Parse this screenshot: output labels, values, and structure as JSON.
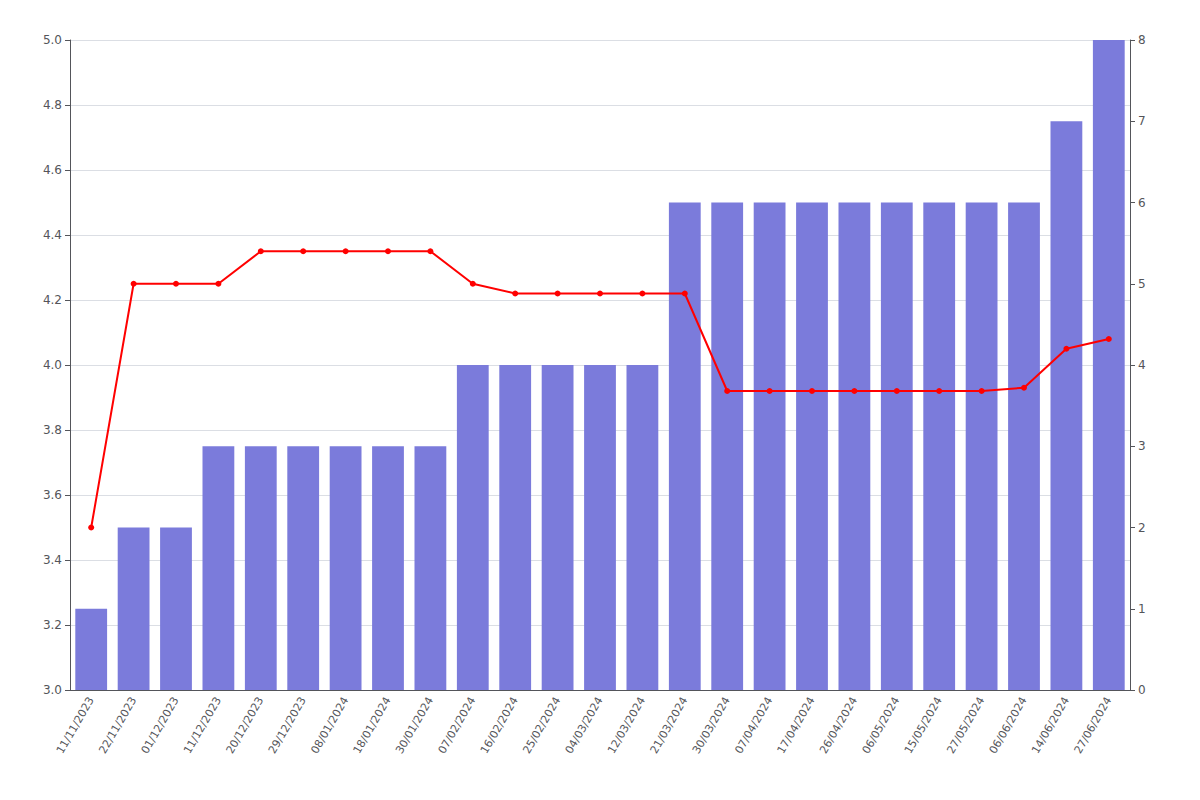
{
  "chart_data": {
    "type": "bar",
    "categories": [
      "11/11/2023",
      "22/11/2023",
      "01/12/2023",
      "11/12/2023",
      "20/12/2023",
      "29/12/2023",
      "08/01/2024",
      "18/01/2024",
      "30/01/2024",
      "07/02/2024",
      "16/02/2024",
      "25/02/2024",
      "04/03/2024",
      "12/03/2024",
      "21/03/2024",
      "30/03/2024",
      "07/04/2024",
      "17/04/2024",
      "26/04/2024",
      "06/05/2024",
      "15/05/2024",
      "27/05/2024",
      "06/06/2024",
      "14/06/2024",
      "27/06/2024"
    ],
    "series": [
      {
        "type": "bar",
        "color": "#7b7bdb",
        "axis": "y2",
        "values": [
          1,
          2,
          2,
          3,
          3,
          3,
          3,
          3,
          3,
          4,
          4,
          4,
          4,
          4,
          6,
          6,
          6,
          6,
          6,
          6,
          6,
          6,
          6,
          7,
          8
        ]
      },
      {
        "type": "line",
        "color": "#ff0000",
        "marker": "circle",
        "values": [
          3.5,
          4.25,
          4.25,
          4.25,
          4.35,
          4.35,
          4.35,
          4.35,
          4.35,
          4.25,
          4.22,
          4.22,
          4.22,
          4.22,
          4.22,
          3.92,
          3.92,
          3.92,
          3.92,
          3.92,
          3.92,
          3.92,
          3.93,
          4.05,
          4.08
        ]
      }
    ],
    "ylim": [
      3.0,
      5.0
    ],
    "yticks": [
      {
        "value": 3,
        "label": "3.0"
      },
      3.2,
      3.4,
      3.6,
      3.8,
      {
        "value": 4,
        "label": "4.0"
      },
      4.2,
      4.4,
      4.6,
      4.8,
      {
        "value": 5,
        "label": "5.0"
      }
    ],
    "y2lim": [
      0,
      8
    ],
    "y2ticks": [
      0,
      1,
      2,
      3,
      4,
      5,
      6,
      7,
      8
    ],
    "grid": true
  }
}
